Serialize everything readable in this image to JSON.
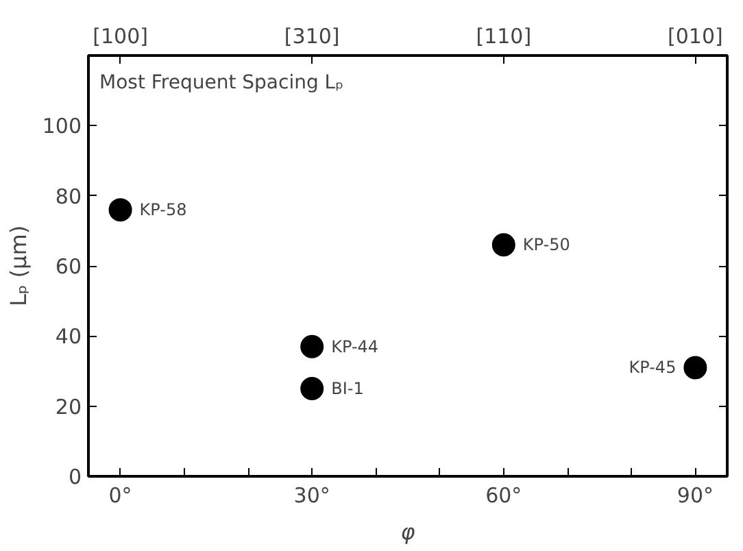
{
  "chart_data": {
    "type": "scatter",
    "title": "Most Frequent Spacing Lₚ",
    "xlabel": "φ",
    "ylabel": "Lₚ (μm)",
    "x": [
      0,
      30,
      30,
      60,
      90
    ],
    "values": [
      76,
      37,
      25,
      66,
      31
    ],
    "color": "#000000",
    "marker": "circle",
    "xlim": [
      -5,
      95
    ],
    "ylim": [
      0,
      120
    ],
    "xticks": [
      {
        "value": 0,
        "label": "0°"
      },
      {
        "value": 10,
        "label": null
      },
      {
        "value": 20,
        "label": null
      },
      {
        "value": 30,
        "label": "30°"
      },
      {
        "value": 40,
        "label": null
      },
      {
        "value": 50,
        "label": null
      },
      {
        "value": 60,
        "label": "60°"
      },
      {
        "value": 70,
        "label": null
      },
      {
        "value": 80,
        "label": null
      },
      {
        "value": 90,
        "label": "90°"
      }
    ],
    "yticks": [
      0,
      20,
      40,
      60,
      80,
      100
    ],
    "annotations": [
      {
        "text": "KP-58",
        "x": 0,
        "y": 76
      },
      {
        "text": "KP-44",
        "x": 30,
        "y": 37
      },
      {
        "text": "BI-1",
        "x": 30,
        "y": 25
      },
      {
        "text": "KP-50",
        "x": 60,
        "y": 66
      },
      {
        "text": "KP-45",
        "x": 90,
        "y": 31
      },
      {
        "text": "[100]",
        "x": 0
      },
      {
        "text": "[310]",
        "x": 30
      },
      {
        "text": "[110]",
        "x": 60
      },
      {
        "text": "[010]",
        "x": 90
      }
    ],
    "grid": false
  }
}
